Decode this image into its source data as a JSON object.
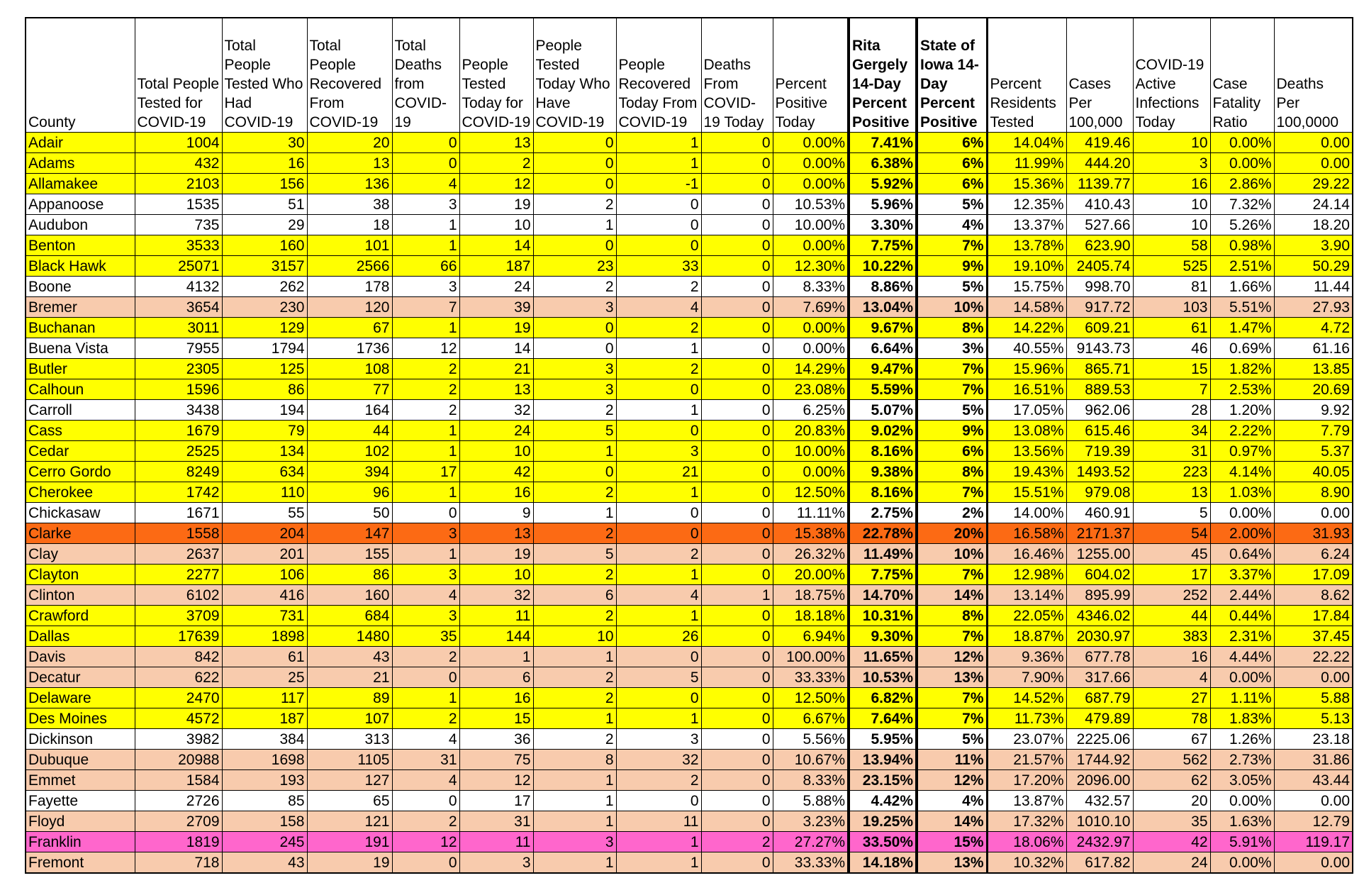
{
  "table": {
    "headers": [
      "County",
      "Total People Tested for COVID-19",
      "Total People Tested Who Had COVID-19",
      "Total People Recovered From COVID-19",
      "Total Deaths from COVID-19",
      "People Tested Today for COVID-19",
      "People Tested Today Who Have COVID-19",
      "People Recovered Today From COVID-19",
      "Deaths From COVID-19 Today",
      "Percent Positive Today",
      "Rita Gergely 14-Day Percent Positive",
      "State of Iowa 14-Day Percent Positive",
      "Percent Residents Tested",
      "Cases Per 100,000",
      "COVID-19 Active Infections Today",
      "Case Fatality Ratio",
      "Deaths Per 100,0000"
    ],
    "rows": [
      {
        "color": "#ffff00",
        "cells": [
          "Adair",
          "1004",
          "30",
          "20",
          "0",
          "13",
          "0",
          "1",
          "0",
          "0.00%",
          "7.41%",
          "6%",
          "14.04%",
          "419.46",
          "10",
          "0.00%",
          "0.00"
        ]
      },
      {
        "color": "#ffff00",
        "cells": [
          "Adams",
          "432",
          "16",
          "13",
          "0",
          "2",
          "0",
          "1",
          "0",
          "0.00%",
          "6.38%",
          "6%",
          "11.99%",
          "444.20",
          "3",
          "0.00%",
          "0.00"
        ]
      },
      {
        "color": "#ffff00",
        "cells": [
          "Allamakee",
          "2103",
          "156",
          "136",
          "4",
          "12",
          "0",
          "-1",
          "0",
          "0.00%",
          "5.92%",
          "6%",
          "15.36%",
          "1139.77",
          "16",
          "2.86%",
          "29.22"
        ]
      },
      {
        "color": "#ffffff",
        "cells": [
          "Appanoose",
          "1535",
          "51",
          "38",
          "3",
          "19",
          "2",
          "0",
          "0",
          "10.53%",
          "5.96%",
          "5%",
          "12.35%",
          "410.43",
          "10",
          "7.32%",
          "24.14"
        ]
      },
      {
        "color": "#ffffff",
        "cells": [
          "Audubon",
          "735",
          "29",
          "18",
          "1",
          "10",
          "1",
          "0",
          "0",
          "10.00%",
          "3.30%",
          "4%",
          "13.37%",
          "527.66",
          "10",
          "5.26%",
          "18.20"
        ]
      },
      {
        "color": "#ffff00",
        "cells": [
          "Benton",
          "3533",
          "160",
          "101",
          "1",
          "14",
          "0",
          "0",
          "0",
          "0.00%",
          "7.75%",
          "7%",
          "13.78%",
          "623.90",
          "58",
          "0.98%",
          "3.90"
        ]
      },
      {
        "color": "#ffff00",
        "cells": [
          "Black Hawk",
          "25071",
          "3157",
          "2566",
          "66",
          "187",
          "23",
          "33",
          "0",
          "12.30%",
          "10.22%",
          "9%",
          "19.10%",
          "2405.74",
          "525",
          "2.51%",
          "50.29"
        ]
      },
      {
        "color": "#ffffff",
        "cells": [
          "Boone",
          "4132",
          "262",
          "178",
          "3",
          "24",
          "2",
          "2",
          "0",
          "8.33%",
          "8.86%",
          "5%",
          "15.75%",
          "998.70",
          "81",
          "1.66%",
          "11.44"
        ]
      },
      {
        "color": "#f8cbad",
        "cells": [
          "Bremer",
          "3654",
          "230",
          "120",
          "7",
          "39",
          "3",
          "4",
          "0",
          "7.69%",
          "13.04%",
          "10%",
          "14.58%",
          "917.72",
          "103",
          "5.51%",
          "27.93"
        ]
      },
      {
        "color": "#ffff00",
        "cells": [
          "Buchanan",
          "3011",
          "129",
          "67",
          "1",
          "19",
          "0",
          "2",
          "0",
          "0.00%",
          "9.67%",
          "8%",
          "14.22%",
          "609.21",
          "61",
          "1.47%",
          "4.72"
        ]
      },
      {
        "color": "#ffffff",
        "cells": [
          "Buena Vista",
          "7955",
          "1794",
          "1736",
          "12",
          "14",
          "0",
          "1",
          "0",
          "0.00%",
          "6.64%",
          "3%",
          "40.55%",
          "9143.73",
          "46",
          "0.69%",
          "61.16"
        ]
      },
      {
        "color": "#ffff00",
        "cells": [
          "Butler",
          "2305",
          "125",
          "108",
          "2",
          "21",
          "3",
          "2",
          "0",
          "14.29%",
          "9.47%",
          "7%",
          "15.96%",
          "865.71",
          "15",
          "1.82%",
          "13.85"
        ]
      },
      {
        "color": "#ffff00",
        "cells": [
          "Calhoun",
          "1596",
          "86",
          "77",
          "2",
          "13",
          "3",
          "0",
          "0",
          "23.08%",
          "5.59%",
          "7%",
          "16.51%",
          "889.53",
          "7",
          "2.53%",
          "20.69"
        ]
      },
      {
        "color": "#ffffff",
        "cells": [
          "Carroll",
          "3438",
          "194",
          "164",
          "2",
          "32",
          "2",
          "1",
          "0",
          "6.25%",
          "5.07%",
          "5%",
          "17.05%",
          "962.06",
          "28",
          "1.20%",
          "9.92"
        ]
      },
      {
        "color": "#ffff00",
        "cells": [
          "Cass",
          "1679",
          "79",
          "44",
          "1",
          "24",
          "5",
          "0",
          "0",
          "20.83%",
          "9.02%",
          "9%",
          "13.08%",
          "615.46",
          "34",
          "2.22%",
          "7.79"
        ]
      },
      {
        "color": "#ffff00",
        "cells": [
          "Cedar",
          "2525",
          "134",
          "102",
          "1",
          "10",
          "1",
          "3",
          "0",
          "10.00%",
          "8.16%",
          "6%",
          "13.56%",
          "719.39",
          "31",
          "0.97%",
          "5.37"
        ]
      },
      {
        "color": "#ffff00",
        "cells": [
          "Cerro Gordo",
          "8249",
          "634",
          "394",
          "17",
          "42",
          "0",
          "21",
          "0",
          "0.00%",
          "9.38%",
          "8%",
          "19.43%",
          "1493.52",
          "223",
          "4.14%",
          "40.05"
        ]
      },
      {
        "color": "#ffff00",
        "cells": [
          "Cherokee",
          "1742",
          "110",
          "96",
          "1",
          "16",
          "2",
          "1",
          "0",
          "12.50%",
          "8.16%",
          "7%",
          "15.51%",
          "979.08",
          "13",
          "1.03%",
          "8.90"
        ]
      },
      {
        "color": "#ffffff",
        "cells": [
          "Chickasaw",
          "1671",
          "55",
          "50",
          "0",
          "9",
          "1",
          "0",
          "0",
          "11.11%",
          "2.75%",
          "2%",
          "14.00%",
          "460.91",
          "5",
          "0.00%",
          "0.00"
        ]
      },
      {
        "color": "#fc6a14",
        "cells": [
          "Clarke",
          "1558",
          "204",
          "147",
          "3",
          "13",
          "2",
          "0",
          "0",
          "15.38%",
          "22.78%",
          "20%",
          "16.58%",
          "2171.37",
          "54",
          "2.00%",
          "31.93"
        ]
      },
      {
        "color": "#f8cbad",
        "cells": [
          "Clay",
          "2637",
          "201",
          "155",
          "1",
          "19",
          "5",
          "2",
          "0",
          "26.32%",
          "11.49%",
          "10%",
          "16.46%",
          "1255.00",
          "45",
          "0.64%",
          "6.24"
        ]
      },
      {
        "color": "#ffff00",
        "cells": [
          "Clayton",
          "2277",
          "106",
          "86",
          "3",
          "10",
          "2",
          "1",
          "0",
          "20.00%",
          "7.75%",
          "7%",
          "12.98%",
          "604.02",
          "17",
          "3.37%",
          "17.09"
        ]
      },
      {
        "color": "#f8cbad",
        "cells": [
          "Clinton",
          "6102",
          "416",
          "160",
          "4",
          "32",
          "6",
          "4",
          "1",
          "18.75%",
          "14.70%",
          "14%",
          "13.14%",
          "895.99",
          "252",
          "2.44%",
          "8.62"
        ]
      },
      {
        "color": "#ffff00",
        "cells": [
          "Crawford",
          "3709",
          "731",
          "684",
          "3",
          "11",
          "2",
          "1",
          "0",
          "18.18%",
          "10.31%",
          "8%",
          "22.05%",
          "4346.02",
          "44",
          "0.44%",
          "17.84"
        ]
      },
      {
        "color": "#ffff00",
        "cells": [
          "Dallas",
          "17639",
          "1898",
          "1480",
          "35",
          "144",
          "10",
          "26",
          "0",
          "6.94%",
          "9.30%",
          "7%",
          "18.87%",
          "2030.97",
          "383",
          "2.31%",
          "37.45"
        ]
      },
      {
        "color": "#f8cbad",
        "cells": [
          "Davis",
          "842",
          "61",
          "43",
          "2",
          "1",
          "1",
          "0",
          "0",
          "100.00%",
          "11.65%",
          "12%",
          "9.36%",
          "677.78",
          "16",
          "4.44%",
          "22.22"
        ]
      },
      {
        "color": "#f8cbad",
        "cells": [
          "Decatur",
          "622",
          "25",
          "21",
          "0",
          "6",
          "2",
          "5",
          "0",
          "33.33%",
          "10.53%",
          "13%",
          "7.90%",
          "317.66",
          "4",
          "0.00%",
          "0.00"
        ]
      },
      {
        "color": "#ffff00",
        "cells": [
          "Delaware",
          "2470",
          "117",
          "89",
          "1",
          "16",
          "2",
          "0",
          "0",
          "12.50%",
          "6.82%",
          "7%",
          "14.52%",
          "687.79",
          "27",
          "1.11%",
          "5.88"
        ]
      },
      {
        "color": "#ffff00",
        "cells": [
          "Des Moines",
          "4572",
          "187",
          "107",
          "2",
          "15",
          "1",
          "1",
          "0",
          "6.67%",
          "7.64%",
          "7%",
          "11.73%",
          "479.89",
          "78",
          "1.83%",
          "5.13"
        ]
      },
      {
        "color": "#ffffff",
        "cells": [
          "Dickinson",
          "3982",
          "384",
          "313",
          "4",
          "36",
          "2",
          "3",
          "0",
          "5.56%",
          "5.95%",
          "5%",
          "23.07%",
          "2225.06",
          "67",
          "1.26%",
          "23.18"
        ]
      },
      {
        "color": "#f8cbad",
        "cells": [
          "Dubuque",
          "20988",
          "1698",
          "1105",
          "31",
          "75",
          "8",
          "32",
          "0",
          "10.67%",
          "13.94%",
          "11%",
          "21.57%",
          "1744.92",
          "562",
          "2.73%",
          "31.86"
        ]
      },
      {
        "color": "#f8cbad",
        "cells": [
          "Emmet",
          "1584",
          "193",
          "127",
          "4",
          "12",
          "1",
          "2",
          "0",
          "8.33%",
          "23.15%",
          "12%",
          "17.20%",
          "2096.00",
          "62",
          "3.05%",
          "43.44"
        ]
      },
      {
        "color": "#ffffff",
        "cells": [
          "Fayette",
          "2726",
          "85",
          "65",
          "0",
          "17",
          "1",
          "0",
          "0",
          "5.88%",
          "4.42%",
          "4%",
          "13.87%",
          "432.57",
          "20",
          "0.00%",
          "0.00"
        ]
      },
      {
        "color": "#f8cbad",
        "cells": [
          "Floyd",
          "2709",
          "158",
          "121",
          "2",
          "31",
          "1",
          "11",
          "0",
          "3.23%",
          "19.25%",
          "14%",
          "17.32%",
          "1010.10",
          "35",
          "1.63%",
          "12.79"
        ]
      },
      {
        "color": "#ff66cc",
        "cells": [
          "Franklin",
          "1819",
          "245",
          "191",
          "12",
          "11",
          "3",
          "1",
          "2",
          "27.27%",
          "33.50%",
          "15%",
          "18.06%",
          "2432.97",
          "42",
          "5.91%",
          "119.17"
        ]
      },
      {
        "color": "#f8cbad",
        "cells": [
          "Fremont",
          "718",
          "43",
          "19",
          "0",
          "3",
          "1",
          "1",
          "0",
          "33.33%",
          "14.18%",
          "13%",
          "10.32%",
          "617.82",
          "24",
          "0.00%",
          "0.00"
        ]
      }
    ]
  }
}
